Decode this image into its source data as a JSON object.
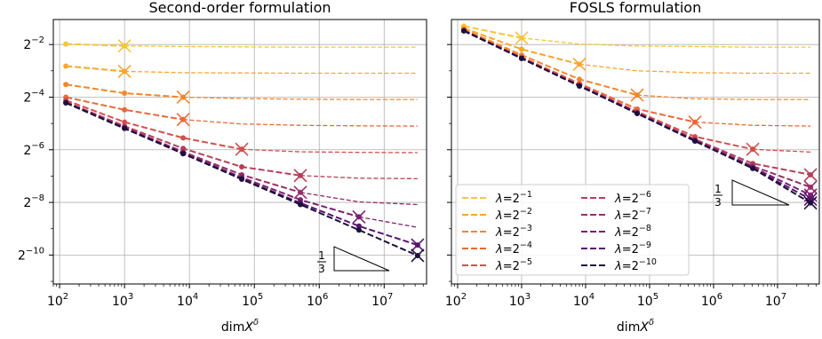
{
  "colors": {
    "series": [
      "#f7c536",
      "#f9a62c",
      "#f4862b",
      "#e7693a",
      "#d24f4c",
      "#b63f58",
      "#982d66",
      "#7a2070",
      "#561570",
      "#1d0f3d"
    ],
    "grid": "#b0b0b0",
    "axis": "#000000"
  },
  "chart_data": [
    {
      "type": "line",
      "title": "Second-order formulation",
      "xlabel": "dimX^δ",
      "xscale": "log10",
      "yscale": "log2",
      "xlim": [
        80,
        45000000
      ],
      "ylim_log2": [
        -11.1,
        -1.05
      ],
      "grid": true,
      "x_ticks": [
        {
          "base": "10",
          "exp": "2",
          "value_log": 2
        },
        {
          "base": "10",
          "exp": "3",
          "value_log": 3
        },
        {
          "base": "10",
          "exp": "4",
          "value_log": 4
        },
        {
          "base": "10",
          "exp": "5",
          "value_log": 5
        },
        {
          "base": "10",
          "exp": "6",
          "value_log": 6
        },
        {
          "base": "10",
          "exp": "7",
          "value_log": 7
        }
      ],
      "y_ticks": [
        {
          "base": "2",
          "exp": "−2",
          "value_log": -2
        },
        {
          "base": "2",
          "exp": "−4",
          "value_log": -4
        },
        {
          "base": "2",
          "exp": "−6",
          "value_log": -6
        },
        {
          "base": "2",
          "exp": "−8",
          "value_log": -8
        },
        {
          "base": "2",
          "exp": "−10",
          "value_log": -10
        }
      ],
      "x": [
        125,
        1000,
        8000,
        64000,
        512000,
        4096000,
        32768000
      ],
      "series": [
        {
          "name": "λ=2^-1",
          "marker_index": 1,
          "values": [
            -1.98,
            -2.05,
            -2.08,
            -2.09,
            -2.1,
            -2.1,
            -2.1
          ]
        },
        {
          "name": "λ=2^-2",
          "marker_index": 1,
          "values": [
            -2.82,
            -3.02,
            -3.07,
            -3.08,
            -3.09,
            -3.09,
            -3.09
          ]
        },
        {
          "name": "λ=2^-3",
          "marker_index": 2,
          "values": [
            -3.52,
            -3.85,
            -4.0,
            -4.05,
            -4.08,
            -4.09,
            -4.09
          ]
        },
        {
          "name": "λ=2^-4",
          "marker_index": 2,
          "values": [
            -4.0,
            -4.48,
            -4.85,
            -5.02,
            -5.07,
            -5.09,
            -5.1
          ]
        },
        {
          "name": "λ=2^-5",
          "marker_index": 3,
          "values": [
            -4.12,
            -4.95,
            -5.55,
            -5.98,
            -6.08,
            -6.1,
            -6.11
          ]
        },
        {
          "name": "λ=2^-6",
          "marker_index": 4,
          "values": [
            -4.18,
            -5.1,
            -5.95,
            -6.65,
            -6.98,
            -7.08,
            -7.1
          ]
        },
        {
          "name": "λ=2^-7",
          "marker_index": 4,
          "values": [
            -4.2,
            -5.15,
            -6.08,
            -6.95,
            -7.62,
            -7.98,
            -8.08
          ]
        },
        {
          "name": "λ=2^-8",
          "marker_index": 5,
          "values": [
            -4.21,
            -5.17,
            -6.12,
            -7.05,
            -7.9,
            -8.55,
            -8.95
          ]
        },
        {
          "name": "λ=2^-9",
          "marker_index": 6,
          "values": [
            -4.21,
            -5.18,
            -6.14,
            -7.1,
            -8.02,
            -8.9,
            -9.62
          ]
        },
        {
          "name": "λ=2^-10",
          "marker_index": 6,
          "values": [
            -4.22,
            -5.19,
            -6.15,
            -7.12,
            -8.08,
            -9.05,
            -10.02
          ]
        }
      ],
      "slope_triangle": {
        "label_num": "1",
        "label_den": "3"
      }
    },
    {
      "type": "line",
      "title": "FOSLS formulation",
      "xlabel": "dimX^δ",
      "xscale": "log10",
      "yscale": "log2",
      "xlim": [
        80,
        45000000
      ],
      "ylim_log2": [
        -11.1,
        -1.05
      ],
      "grid": true,
      "x_ticks": [
        {
          "base": "10",
          "exp": "2",
          "value_log": 2
        },
        {
          "base": "10",
          "exp": "3",
          "value_log": 3
        },
        {
          "base": "10",
          "exp": "4",
          "value_log": 4
        },
        {
          "base": "10",
          "exp": "5",
          "value_log": 5
        },
        {
          "base": "10",
          "exp": "6",
          "value_log": 6
        },
        {
          "base": "10",
          "exp": "7",
          "value_log": 7
        }
      ],
      "x": [
        125,
        1000,
        8000,
        64000,
        512000,
        4096000,
        32768000
      ],
      "series": [
        {
          "name": "λ=2^-1",
          "marker_index": 1,
          "values": [
            -1.3,
            -1.75,
            -1.98,
            -2.06,
            -2.08,
            -2.1,
            -2.1
          ]
        },
        {
          "name": "λ=2^-2",
          "marker_index": 2,
          "values": [
            -1.38,
            -2.18,
            -2.75,
            -3.0,
            -3.07,
            -3.09,
            -3.09
          ]
        },
        {
          "name": "λ=2^-3",
          "marker_index": 3,
          "values": [
            -1.42,
            -2.4,
            -3.32,
            -3.92,
            -4.06,
            -4.09,
            -4.09
          ]
        },
        {
          "name": "λ=2^-4",
          "marker_index": 4,
          "values": [
            -1.45,
            -2.48,
            -3.48,
            -4.45,
            -4.95,
            -5.07,
            -5.1
          ]
        },
        {
          "name": "λ=2^-5",
          "marker_index": 5,
          "values": [
            -1.46,
            -2.5,
            -3.53,
            -4.55,
            -5.5,
            -5.98,
            -6.09
          ]
        },
        {
          "name": "λ=2^-6",
          "marker_index": 6,
          "values": [
            -1.47,
            -2.51,
            -3.55,
            -4.58,
            -5.6,
            -6.52,
            -6.95
          ]
        },
        {
          "name": "λ=2^-7",
          "marker_index": 6,
          "values": [
            -1.47,
            -2.52,
            -3.56,
            -4.6,
            -5.63,
            -6.62,
            -7.42
          ]
        },
        {
          "name": "λ=2^-8",
          "marker_index": 6,
          "values": [
            -1.48,
            -2.52,
            -3.57,
            -4.61,
            -5.65,
            -6.67,
            -7.72
          ]
        },
        {
          "name": "λ=2^-9",
          "marker_index": 6,
          "values": [
            -1.48,
            -2.53,
            -3.57,
            -4.62,
            -5.66,
            -6.7,
            -7.88
          ]
        },
        {
          "name": "λ=2^-10",
          "marker_index": 6,
          "values": [
            -1.48,
            -2.53,
            -3.58,
            -4.62,
            -5.67,
            -6.71,
            -8.02
          ]
        }
      ],
      "slope_triangle": {
        "label_num": "1",
        "label_den": "3"
      },
      "legend": {
        "placement": "lower-left",
        "entries": [
          {
            "prefix": "λ=2",
            "exp": "−1"
          },
          {
            "prefix": "λ=2",
            "exp": "−2"
          },
          {
            "prefix": "λ=2",
            "exp": "−3"
          },
          {
            "prefix": "λ=2",
            "exp": "−4"
          },
          {
            "prefix": "λ=2",
            "exp": "−5"
          },
          {
            "prefix": "λ=2",
            "exp": "−6"
          },
          {
            "prefix": "λ=2",
            "exp": "−7"
          },
          {
            "prefix": "λ=2",
            "exp": "−8"
          },
          {
            "prefix": "λ=2",
            "exp": "−9"
          },
          {
            "prefix": "λ=2",
            "exp": "−10"
          }
        ]
      }
    }
  ]
}
